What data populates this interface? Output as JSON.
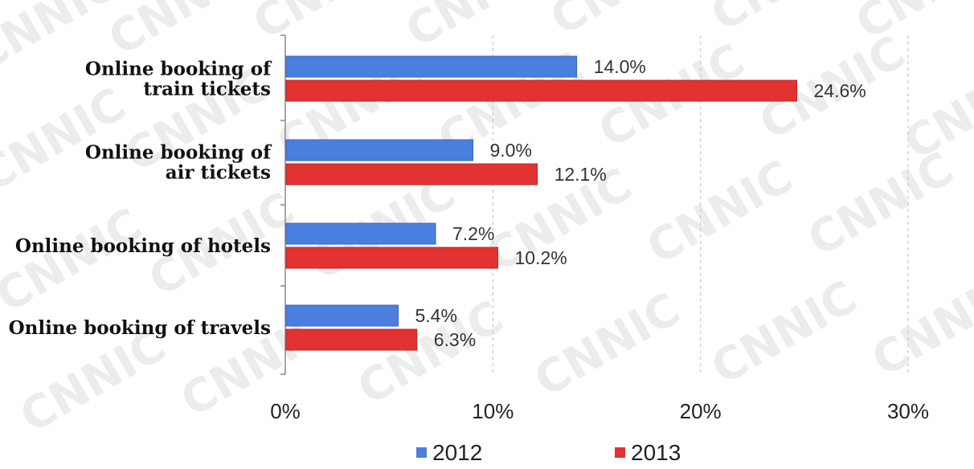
{
  "chart_data": {
    "type": "bar",
    "orientation": "horizontal",
    "categories": [
      [
        "Online booking of",
        "train tickets"
      ],
      [
        "Online booking of",
        "air tickets"
      ],
      [
        "Online booking of hotels"
      ],
      [
        "Online booking of travels"
      ]
    ],
    "series": [
      {
        "name": "2012",
        "color": "#4a7fe0",
        "values": [
          14.0,
          9.0,
          7.2,
          5.4
        ],
        "labels": [
          "14.0%",
          "9.0%",
          "7.2%",
          "5.4%"
        ]
      },
      {
        "name": "2013",
        "color": "#e23232",
        "values": [
          24.6,
          12.1,
          10.2,
          6.3
        ],
        "labels": [
          "24.6%",
          "12.1%",
          "10.2%",
          "6.3%"
        ]
      }
    ],
    "xlim": [
      0,
      30
    ],
    "xticks": [
      0,
      10,
      20,
      30
    ],
    "xtick_labels": [
      "0%",
      "10%",
      "20%",
      "30%"
    ],
    "grid": "vertical dashed",
    "legend": "bottom-center",
    "watermark": "CNNIC"
  }
}
